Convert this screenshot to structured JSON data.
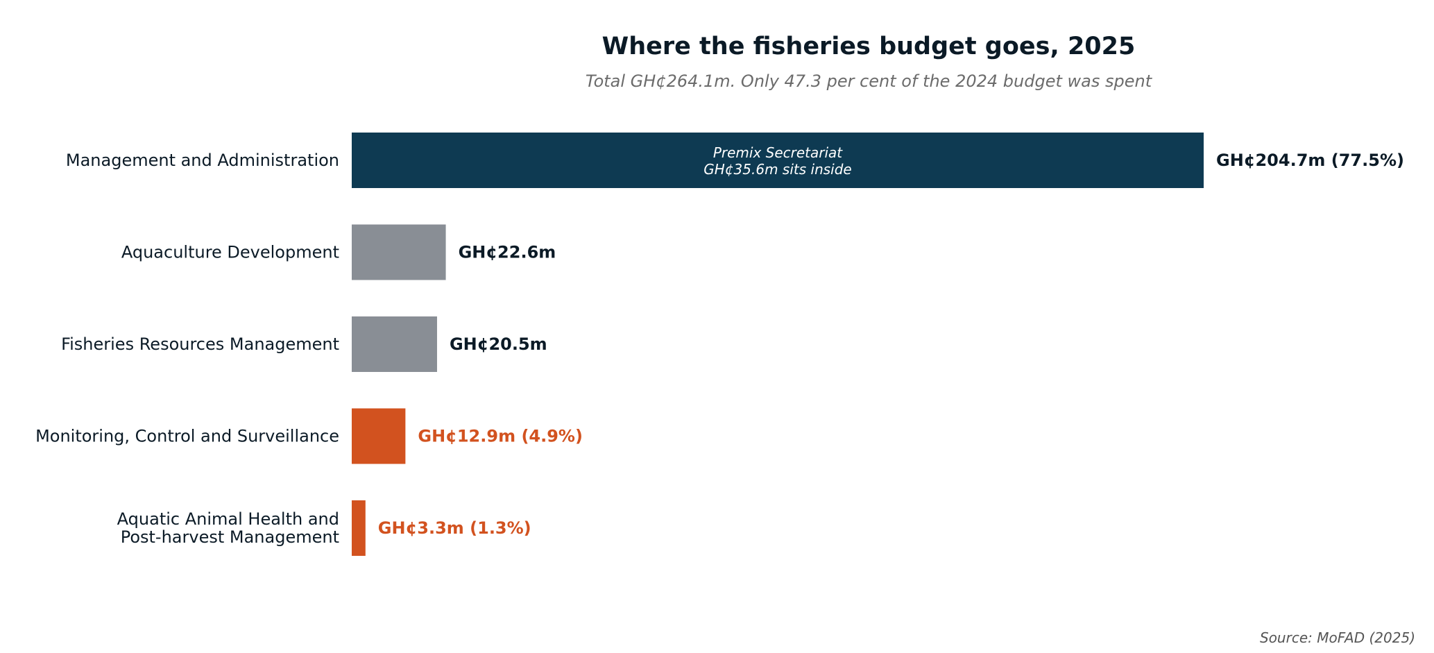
{
  "chart_data": {
    "type": "bar",
    "orientation": "horizontal",
    "title": "Where the fisheries budget goes, 2025",
    "subtitle": "Total GH¢264.1m. Only 47.3 per cent of the 2024 budget was spent",
    "categories": [
      [
        "Management and Administration"
      ],
      [
        "Aquaculture Development"
      ],
      [
        "Fisheries Resources Management"
      ],
      [
        "Monitoring, Control and Surveillance"
      ],
      [
        "Aquatic Animal Health and",
        "Post-harvest Management"
      ]
    ],
    "values": [
      204.7,
      22.6,
      20.5,
      12.9,
      3.3
    ],
    "value_labels": [
      "GH¢204.7m  (77.5%)",
      "GH¢22.6m",
      "GH¢20.5m",
      "GH¢12.9m  (4.9%)",
      "GH¢3.3m  (1.3%)"
    ],
    "bar_colors": [
      "#0e3a52",
      "#898e95",
      "#898e95",
      "#d2521f",
      "#d2521f"
    ],
    "label_colors": [
      "#0b1a26",
      "#0b1a26",
      "#0b1a26",
      "#d2521f",
      "#d2521f"
    ],
    "xlim": [
      0,
      204.7
    ],
    "annotation": {
      "bar_index": 0,
      "lines": [
        "Premix Secretariat",
        "GH¢35.6m sits inside"
      ]
    },
    "source": "Source: MoFAD (2025)",
    "axes_visible": false,
    "grid": false,
    "legend": "none"
  }
}
